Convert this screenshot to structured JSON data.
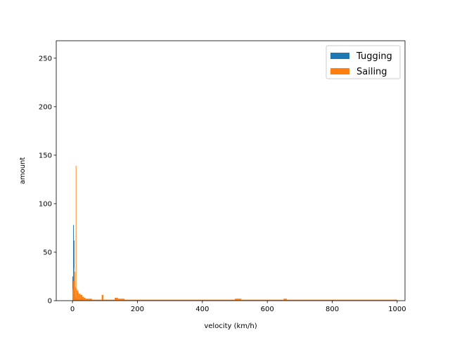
{
  "chart_data": {
    "type": "histogram",
    "xlabel": "velocity (km/h)",
    "ylabel": "amount",
    "bins": [
      0,
      2,
      4,
      6,
      8,
      10,
      12,
      14,
      16,
      18,
      20,
      25,
      30,
      35,
      40,
      50,
      60,
      70,
      80,
      90,
      95,
      100,
      120,
      130,
      140,
      150,
      160,
      200,
      300,
      400,
      500,
      520,
      600,
      650,
      660,
      700,
      1000
    ],
    "series": [
      {
        "name": "Tugging",
        "color": "#1f77b4",
        "values": [
          25,
          78,
          62,
          10,
          4,
          3,
          2,
          1,
          1,
          1,
          1,
          1,
          0,
          0,
          0,
          0,
          0,
          0,
          0,
          0,
          0,
          0,
          0,
          0,
          0,
          0,
          0,
          0,
          0,
          0,
          0,
          0,
          0,
          0,
          0,
          0
        ]
      },
      {
        "name": "Sailing",
        "color": "#ff7f0e",
        "values": [
          12,
          20,
          34,
          30,
          14,
          139,
          12,
          10,
          11,
          8,
          7,
          6,
          4,
          3,
          2,
          2,
          1,
          1,
          1,
          6,
          1,
          1,
          1,
          3,
          2,
          2,
          1,
          1,
          1,
          1,
          2,
          1,
          1,
          2,
          1,
          1
        ]
      }
    ],
    "xlim": [
      -50,
      1024
    ],
    "ylim": [
      0,
      268
    ],
    "xticks": [
      0,
      200,
      400,
      600,
      800,
      1000
    ],
    "yticks": [
      0,
      50,
      100,
      150,
      200,
      250
    ],
    "legend": "upper right"
  }
}
